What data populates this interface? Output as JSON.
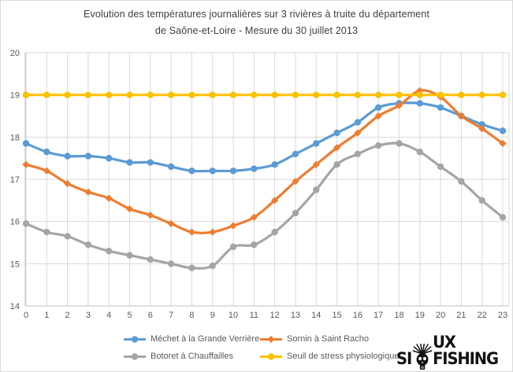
{
  "title": {
    "line1": "Evolution des températures journalières sur 3 rivières à truite du département",
    "line2": "de Saône-et-Loire - Mesure du 30 juillet 2013"
  },
  "watermark": {
    "prefix": "SI",
    "skull_icon": "skull-icon",
    "suffix": "UX FISHING"
  },
  "colors": {
    "gridline": "#d9d9d9",
    "axis_line": "#bfbfbf",
    "tick_label": "#595959",
    "title_text": "#3f3f3f"
  },
  "chart_data": {
    "type": "line",
    "title": "Evolution des températures journalières sur 3 rivières à truite du département de Saône-et-Loire - Mesure du 30 juillet 2013",
    "x_labels": [
      "0",
      "1",
      "2",
      "3",
      "4",
      "5",
      "6",
      "7",
      "8",
      "9",
      "10",
      "11",
      "12",
      "13",
      "14",
      "15",
      "16",
      "17",
      "18",
      "19",
      "20",
      "21",
      "22",
      "23"
    ],
    "yticks": [
      14,
      15,
      16,
      17,
      18,
      19,
      20
    ],
    "ylim": [
      14,
      20
    ],
    "grid": true,
    "legend_position": "bottom",
    "series": [
      {
        "name": "Méchet à la Grande Verrière",
        "color": "#5b9bd5",
        "marker": "circle",
        "values": [
          17.85,
          17.65,
          17.55,
          17.55,
          17.5,
          17.4,
          17.4,
          17.3,
          17.2,
          17.2,
          17.2,
          17.25,
          17.35,
          17.6,
          17.85,
          18.1,
          18.35,
          18.7,
          18.8,
          18.8,
          18.7,
          18.5,
          18.3,
          18.15
        ]
      },
      {
        "name": "Sornin à Saint Racho",
        "color": "#ed7d31",
        "marker": "diamond",
        "values": [
          17.35,
          17.2,
          16.9,
          16.7,
          16.55,
          16.3,
          16.15,
          15.95,
          15.75,
          15.75,
          15.9,
          16.1,
          16.5,
          16.95,
          17.35,
          17.75,
          18.1,
          18.5,
          18.75,
          19.1,
          18.95,
          18.5,
          18.2,
          17.85
        ]
      },
      {
        "name": "Botoret à Chauffailles",
        "color": "#a5a5a5",
        "marker": "circle",
        "values": [
          15.95,
          15.75,
          15.65,
          15.45,
          15.3,
          15.2,
          15.1,
          15.0,
          14.9,
          14.95,
          15.4,
          15.45,
          15.75,
          16.2,
          16.75,
          17.35,
          17.6,
          17.8,
          17.85,
          17.65,
          17.3,
          16.95,
          16.5,
          16.1
        ]
      },
      {
        "name": "Seuil de stress physiologique",
        "color": "#ffc000",
        "marker": "circle",
        "values": [
          19,
          19,
          19,
          19,
          19,
          19,
          19,
          19,
          19,
          19,
          19,
          19,
          19,
          19,
          19,
          19,
          19,
          19,
          19,
          19,
          19,
          19,
          19,
          19
        ]
      }
    ]
  }
}
